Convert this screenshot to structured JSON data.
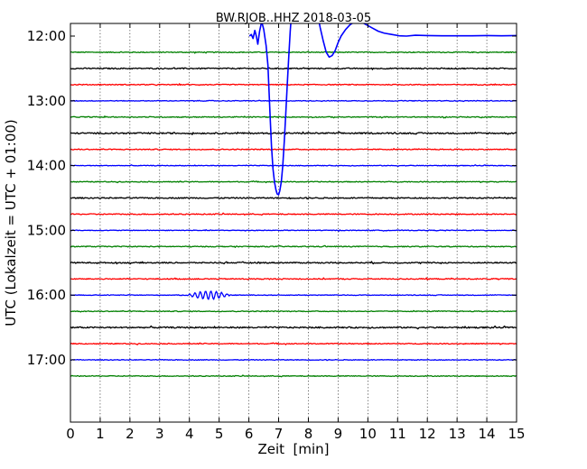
{
  "chart_data": {
    "type": "line",
    "title": "BW.RJOB..HHZ 2018-03-05",
    "xlabel": "Zeit  [min]",
    "ylabel": "UTC (Lokalzeit = UTC + 01:00)",
    "xlim": [
      0,
      15
    ],
    "x_ticks": [
      0,
      1,
      2,
      3,
      4,
      5,
      6,
      7,
      8,
      9,
      10,
      11,
      12,
      13,
      14,
      15
    ],
    "x_tick_labels": [
      "0",
      "1",
      "2",
      "3",
      "4",
      "5",
      "6",
      "7",
      "8",
      "9",
      "10",
      "11",
      "12",
      "13",
      "14",
      "15"
    ],
    "y_tick_labels": [
      "12:00",
      "13:00",
      "14:00",
      "15:00",
      "16:00",
      "17:00"
    ],
    "y_tick_rows": [
      0,
      4,
      8,
      12,
      16,
      20
    ],
    "grid": {
      "x": true,
      "y": false,
      "style": "dotted"
    },
    "row_colors": [
      "#0000ff",
      "#008000",
      "#000000",
      "#ff0000"
    ],
    "rows": [
      {
        "start": "12:00",
        "color": "#0000ff"
      },
      {
        "start": "12:15",
        "color": "#008000"
      },
      {
        "start": "12:30",
        "color": "#000000"
      },
      {
        "start": "12:45",
        "color": "#ff0000"
      },
      {
        "start": "13:00",
        "color": "#0000ff"
      },
      {
        "start": "13:15",
        "color": "#008000"
      },
      {
        "start": "13:30",
        "color": "#000000"
      },
      {
        "start": "13:45",
        "color": "#ff0000"
      },
      {
        "start": "14:00",
        "color": "#0000ff"
      },
      {
        "start": "14:15",
        "color": "#008000"
      },
      {
        "start": "14:30",
        "color": "#000000"
      },
      {
        "start": "14:45",
        "color": "#ff0000"
      },
      {
        "start": "15:00",
        "color": "#0000ff"
      },
      {
        "start": "15:15",
        "color": "#008000"
      },
      {
        "start": "15:30",
        "color": "#000000"
      },
      {
        "start": "15:45",
        "color": "#ff0000"
      },
      {
        "start": "16:00",
        "color": "#0000ff"
      },
      {
        "start": "16:15",
        "color": "#008000"
      },
      {
        "start": "16:30",
        "color": "#000000"
      },
      {
        "start": "16:45",
        "color": "#ff0000"
      },
      {
        "start": "17:00",
        "color": "#0000ff"
      },
      {
        "start": "17:15",
        "color": "#008000"
      }
    ],
    "event": {
      "row": 0,
      "color": "#0000ff",
      "points_min_rowunits": [
        [
          6.02,
          0.0
        ],
        [
          6.08,
          0.1
        ],
        [
          6.14,
          -0.15
        ],
        [
          6.2,
          0.35
        ],
        [
          6.25,
          0.0
        ],
        [
          6.3,
          -0.5
        ],
        [
          6.36,
          0.3
        ],
        [
          6.43,
          0.9
        ],
        [
          6.5,
          0.4
        ],
        [
          6.58,
          -0.6
        ],
        [
          6.64,
          -1.8
        ],
        [
          6.68,
          -3.5
        ],
        [
          6.72,
          -5.2
        ],
        [
          6.76,
          -6.8
        ],
        [
          6.81,
          -8.2
        ],
        [
          6.86,
          -9.0
        ],
        [
          6.91,
          -9.5
        ],
        [
          6.95,
          -9.75
        ],
        [
          7.0,
          -9.8
        ],
        [
          7.04,
          -9.55
        ],
        [
          7.09,
          -9.0
        ],
        [
          7.14,
          -8.0
        ],
        [
          7.19,
          -6.5
        ],
        [
          7.24,
          -4.8
        ],
        [
          7.29,
          -3.0
        ],
        [
          7.34,
          -1.3
        ],
        [
          7.39,
          0.3
        ],
        [
          7.45,
          1.8
        ],
        [
          7.51,
          3.0
        ],
        [
          7.56,
          3.5
        ],
        [
          8.08,
          3.5
        ],
        [
          8.12,
          3.0
        ],
        [
          8.2,
          2.2
        ],
        [
          8.3,
          1.4
        ],
        [
          8.4,
          0.5
        ],
        [
          8.5,
          -0.3
        ],
        [
          8.6,
          -1.0
        ],
        [
          8.7,
          -1.3
        ],
        [
          8.8,
          -1.2
        ],
        [
          8.9,
          -0.9
        ],
        [
          9.0,
          -0.4
        ],
        [
          9.1,
          0.0
        ],
        [
          9.25,
          0.4
        ],
        [
          9.4,
          0.7
        ],
        [
          9.55,
          0.87
        ],
        [
          9.7,
          0.88
        ],
        [
          9.85,
          0.8
        ],
        [
          10.0,
          0.65
        ],
        [
          10.15,
          0.5
        ],
        [
          10.35,
          0.3
        ],
        [
          10.55,
          0.18
        ],
        [
          10.8,
          0.1
        ],
        [
          11.05,
          0.02
        ],
        [
          11.3,
          0.0
        ],
        [
          11.6,
          0.05
        ],
        [
          12.0,
          0.03
        ],
        [
          12.5,
          0.02
        ],
        [
          13.0,
          0.02
        ],
        [
          13.5,
          0.02
        ],
        [
          14.0,
          0.03
        ],
        [
          14.5,
          0.02
        ],
        [
          15.0,
          0.03
        ]
      ]
    },
    "noise_levels": [
      0.06,
      0.08,
      0.1,
      0.08,
      0.06,
      0.08,
      0.12,
      0.08,
      0.06,
      0.07,
      0.1,
      0.09,
      0.06,
      0.08,
      0.1,
      0.09,
      0.06,
      0.07,
      0.12,
      0.08,
      0.06,
      0.07
    ],
    "wavelet": {
      "row": 16,
      "x_start": 3.9,
      "x_end": 5.4,
      "amplitude": 0.25,
      "period_min": 0.18
    }
  }
}
